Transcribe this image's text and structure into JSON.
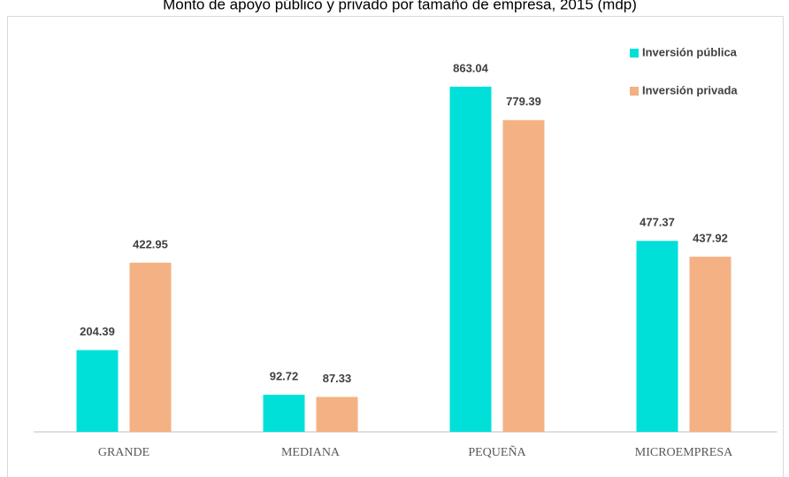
{
  "chart_data": {
    "type": "bar",
    "title": "Monto de apoyo público y privado por tamaño de empresa, 2015 (mdp)",
    "categories": [
      "GRANDE",
      "MEDIANA",
      "PEQUEÑA",
      "MICROEMPRESA"
    ],
    "series": [
      {
        "name": "Inversión pública",
        "color": "#00e0d8",
        "values": [
          204.39,
          92.72,
          863.04,
          477.37
        ]
      },
      {
        "name": "Inversión privada",
        "color": "#f4b183",
        "values": [
          422.95,
          87.33,
          779.39,
          437.92
        ]
      }
    ],
    "ylim": [
      0,
      1000
    ],
    "legend": "top-right"
  }
}
